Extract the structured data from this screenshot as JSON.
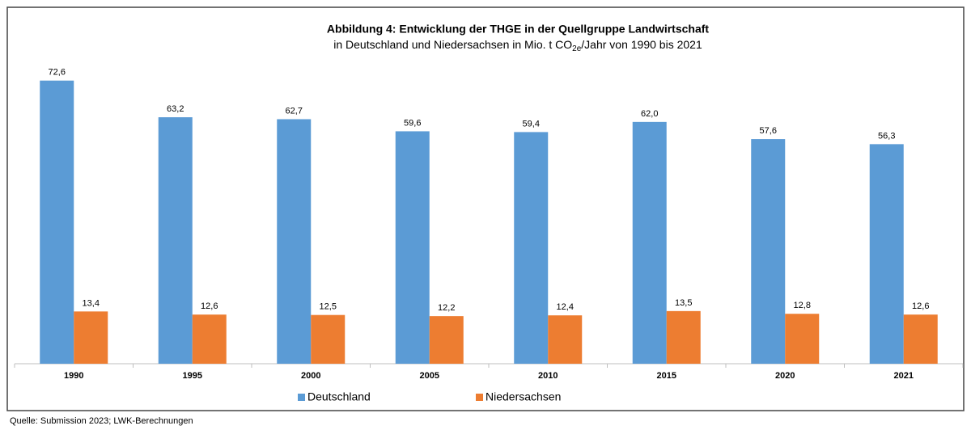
{
  "chart_data": {
    "type": "bar",
    "title": "Abbildung 4: Entwicklung der THGE in der Quellgruppe Landwirtschaft",
    "subtitle": [
      "in Deutschland und Niedersachsen in Mio. t CO",
      "2e",
      "/Jahr von 1990 bis 2021"
    ],
    "categories": [
      "1990",
      "1995",
      "2000",
      "2005",
      "2010",
      "2015",
      "2020",
      "2021"
    ],
    "series": [
      {
        "name": "Deutschland",
        "color": "#5b9bd5",
        "values": [
          72.6,
          63.2,
          62.7,
          59.6,
          59.4,
          62.0,
          57.6,
          56.3
        ],
        "value_labels": [
          "72,6",
          "63,2",
          "62,7",
          "59,6",
          "59,4",
          "62,0",
          "57,6",
          "56,3"
        ]
      },
      {
        "name": "Niedersachsen",
        "color": "#ed7d31",
        "values": [
          13.4,
          12.6,
          12.5,
          12.2,
          12.4,
          13.5,
          12.8,
          12.6
        ],
        "value_labels": [
          "13,4",
          "12,6",
          "12,5",
          "12,2",
          "12,4",
          "13,5",
          "12,8",
          "12,6"
        ]
      }
    ],
    "ylim": [
      0,
      80
    ],
    "source": "Quelle: Submission 2023; LWK-Berechnungen"
  }
}
